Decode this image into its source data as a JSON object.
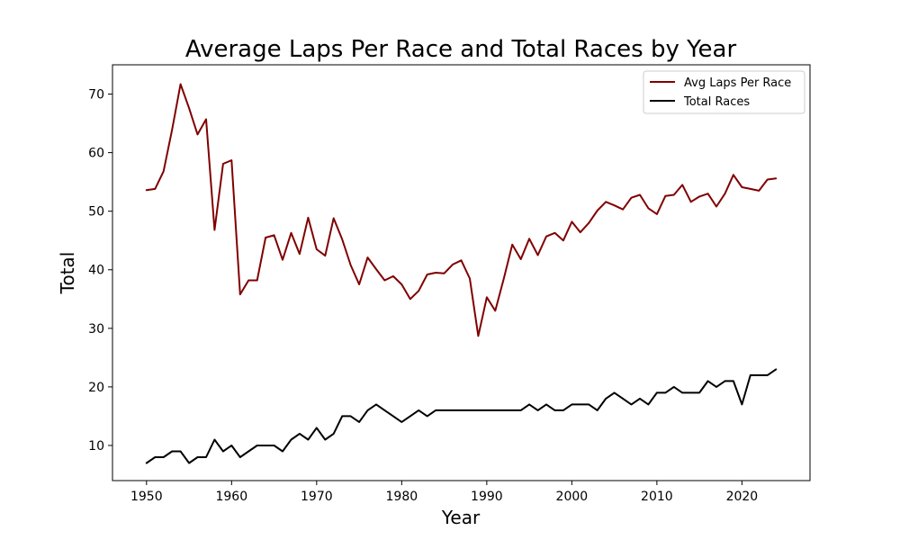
{
  "chart_data": {
    "type": "line",
    "title": "Average Laps Per Race and Total Races by Year",
    "xlabel": "Year",
    "ylabel": "Total",
    "xlim": [
      1946,
      2028
    ],
    "ylim": [
      4,
      75
    ],
    "xticks": [
      1950,
      1960,
      1970,
      1980,
      1990,
      2000,
      2010,
      2020
    ],
    "yticks": [
      10,
      20,
      30,
      40,
      50,
      60,
      70
    ],
    "grid": false,
    "legend_position": "top-right",
    "x": [
      1950,
      1951,
      1952,
      1953,
      1954,
      1955,
      1956,
      1957,
      1958,
      1959,
      1960,
      1961,
      1962,
      1963,
      1964,
      1965,
      1966,
      1967,
      1968,
      1969,
      1970,
      1971,
      1972,
      1973,
      1974,
      1975,
      1976,
      1977,
      1978,
      1979,
      1980,
      1981,
      1982,
      1983,
      1984,
      1985,
      1986,
      1987,
      1988,
      1989,
      1990,
      1991,
      1992,
      1993,
      1994,
      1995,
      1996,
      1997,
      1998,
      1999,
      2000,
      2001,
      2002,
      2003,
      2004,
      2005,
      2006,
      2007,
      2008,
      2009,
      2010,
      2011,
      2012,
      2013,
      2014,
      2015,
      2016,
      2017,
      2018,
      2019,
      2020,
      2021,
      2022,
      2023,
      2024
    ],
    "series": [
      {
        "name": "Avg Laps Per Race",
        "color": "#800000",
        "values": [
          53.6,
          53.8,
          56.8,
          63.9,
          71.7,
          67.6,
          63.1,
          65.7,
          46.8,
          58.1,
          58.7,
          35.8,
          38.2,
          38.2,
          45.5,
          45.9,
          41.7,
          46.3,
          42.7,
          48.9,
          43.5,
          42.4,
          48.8,
          45.2,
          40.8,
          37.5,
          42.1,
          40.1,
          38.2,
          38.9,
          37.5,
          35.0,
          36.4,
          39.2,
          39.5,
          39.4,
          40.9,
          41.6,
          38.5,
          28.7,
          35.3,
          33.0,
          38.5,
          44.3,
          41.8,
          45.3,
          42.5,
          45.7,
          46.3,
          45.0,
          48.2,
          46.4,
          48.0,
          50.1,
          51.6,
          51.0,
          50.3,
          52.3,
          52.8,
          50.5,
          49.5,
          52.6,
          52.8,
          54.5,
          51.6,
          52.5,
          53.0,
          50.8,
          53.0,
          56.2,
          54.1,
          53.8,
          53.5,
          55.4,
          55.6
        ]
      },
      {
        "name": "Total Races",
        "color": "#000000",
        "values": [
          7,
          8,
          8,
          9,
          9,
          7,
          8,
          8,
          11,
          9,
          10,
          8,
          9,
          10,
          10,
          10,
          9,
          11,
          12,
          11,
          13,
          11,
          12,
          15,
          15,
          14,
          16,
          17,
          16,
          15,
          14,
          15,
          16,
          15,
          16,
          16,
          16,
          16,
          16,
          16,
          16,
          16,
          16,
          16,
          16,
          17,
          16,
          17,
          16,
          16,
          17,
          17,
          17,
          16,
          18,
          19,
          18,
          17,
          18,
          17,
          19,
          19,
          20,
          19,
          19,
          19,
          21,
          20,
          21,
          21,
          17,
          22,
          22,
          22,
          23
        ]
      }
    ]
  }
}
